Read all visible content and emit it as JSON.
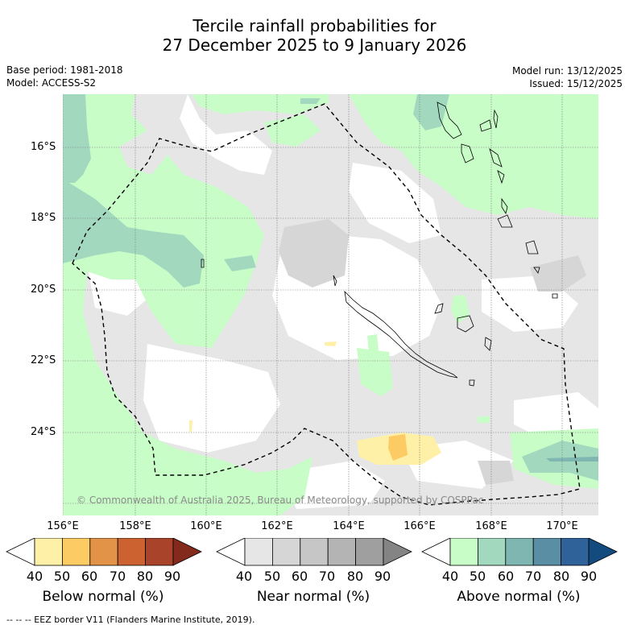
{
  "title": {
    "line1": "Tercile rainfall probabilities for",
    "line2": "27 December 2025 to 9 January 2026"
  },
  "meta": {
    "base_period": "Base period: 1981-2018",
    "model": "Model: ACCESS-S2",
    "model_run": "Model run: 13/12/2025",
    "issued": "Issued: 15/12/2025"
  },
  "axes": {
    "lat_labels": [
      "16°S",
      "18°S",
      "20°S",
      "22°S",
      "24°S"
    ],
    "lon_labels": [
      "156°E",
      "158°E",
      "160°E",
      "162°E",
      "164°E",
      "166°E",
      "168°E",
      "170°E"
    ]
  },
  "copyright": "© Commonwealth of Australia 2025, Bureau of Meteorology, supported by COSPPac",
  "colorbars": [
    {
      "label": "Below normal (%)",
      "ticks": [
        "40",
        "50",
        "60",
        "70",
        "80",
        "90"
      ],
      "colors": [
        "#ffffff",
        "#fff0a8",
        "#fdcb63",
        "#e39347",
        "#cb6230",
        "#a9442a",
        "#832a1c"
      ]
    },
    {
      "label": "Near normal (%)",
      "ticks": [
        "40",
        "50",
        "60",
        "70",
        "80",
        "90"
      ],
      "colors": [
        "#ffffff",
        "#e6e6e6",
        "#d6d6d6",
        "#c6c6c6",
        "#b4b4b4",
        "#9f9f9f",
        "#848484"
      ]
    },
    {
      "label": "Above normal (%)",
      "ticks": [
        "40",
        "50",
        "60",
        "70",
        "80",
        "90"
      ],
      "colors": [
        "#ffffff",
        "#c8fdc8",
        "#a2d9be",
        "#7fb6b1",
        "#5a8ea5",
        "#30629a",
        "#134b7e"
      ]
    }
  ],
  "footnote": "--  --  -- EEZ border V11 (Flanders Marine Institute, 2019)."
}
